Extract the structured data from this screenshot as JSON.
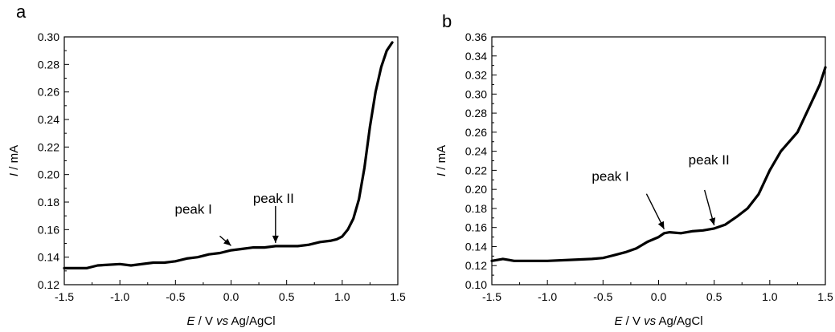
{
  "chart_data": [
    {
      "type": "line",
      "panel_label": "a",
      "xlabel_prefix": "E",
      "xlabel_mid": " / V ",
      "xlabel_vs": "vs",
      "xlabel_suffix": " Ag/AgCl",
      "ylabel_prefix": "I",
      "ylabel_suffix": " / mA",
      "xlim": [
        -1.5,
        1.5
      ],
      "ylim": [
        0.12,
        0.3
      ],
      "xticks": [
        "-1.5",
        "-1.0",
        "-0.5",
        "0.0",
        "0.5",
        "1.0",
        "1.5"
      ],
      "yticks": [
        "0.12",
        "0.14",
        "0.16",
        "0.18",
        "0.20",
        "0.22",
        "0.24",
        "0.26",
        "0.28",
        "0.30"
      ],
      "series": [
        {
          "x": [
            -1.5,
            -1.3,
            -1.2,
            -1.0,
            -0.9,
            -0.7,
            -0.6,
            -0.5,
            -0.4,
            -0.3,
            -0.2,
            -0.1,
            0.0,
            0.1,
            0.2,
            0.3,
            0.4,
            0.5,
            0.6,
            0.7,
            0.8,
            0.9,
            0.95,
            1.0,
            1.05,
            1.1,
            1.15,
            1.2,
            1.25,
            1.3,
            1.35,
            1.4,
            1.45
          ],
          "y": [
            0.132,
            0.132,
            0.134,
            0.135,
            0.134,
            0.136,
            0.136,
            0.137,
            0.139,
            0.14,
            0.142,
            0.143,
            0.145,
            0.146,
            0.147,
            0.147,
            0.148,
            0.148,
            0.148,
            0.149,
            0.151,
            0.152,
            0.153,
            0.155,
            0.16,
            0.168,
            0.182,
            0.205,
            0.235,
            0.26,
            0.278,
            0.29,
            0.296
          ]
        }
      ],
      "annotations": [
        {
          "text": "peak I",
          "x": 0.0,
          "y": 0.146
        },
        {
          "text": "peak II",
          "x": 0.4,
          "y": 0.148
        }
      ]
    },
    {
      "type": "line",
      "panel_label": "b",
      "xlabel_prefix": "E",
      "xlabel_mid": " / V ",
      "xlabel_vs": "vs",
      "xlabel_suffix": " Ag/AgCl",
      "ylabel_prefix": "I",
      "ylabel_suffix": " / mA",
      "xlim": [
        -1.5,
        1.5
      ],
      "ylim": [
        0.1,
        0.36
      ],
      "xticks": [
        "-1.5",
        "-1.0",
        "-0.5",
        "0.0",
        "0.5",
        "1.0",
        "1.5"
      ],
      "yticks": [
        "0.10",
        "0.12",
        "0.14",
        "0.16",
        "0.18",
        "0.20",
        "0.22",
        "0.24",
        "0.26",
        "0.28",
        "0.30",
        "0.32",
        "0.34",
        "0.36"
      ],
      "series": [
        {
          "x": [
            -1.5,
            -1.4,
            -1.3,
            -1.2,
            -1.0,
            -0.8,
            -0.6,
            -0.5,
            -0.4,
            -0.3,
            -0.2,
            -0.1,
            0.0,
            0.05,
            0.1,
            0.2,
            0.3,
            0.4,
            0.5,
            0.6,
            0.7,
            0.8,
            0.9,
            1.0,
            1.1,
            1.25,
            1.35,
            1.45,
            1.5
          ],
          "y": [
            0.125,
            0.127,
            0.125,
            0.125,
            0.125,
            0.126,
            0.127,
            0.128,
            0.131,
            0.134,
            0.138,
            0.145,
            0.15,
            0.154,
            0.155,
            0.154,
            0.156,
            0.157,
            0.159,
            0.163,
            0.171,
            0.18,
            0.195,
            0.22,
            0.24,
            0.26,
            0.285,
            0.31,
            0.328
          ]
        }
      ],
      "annotations": [
        {
          "text": "peak I",
          "x": 0.05,
          "y": 0.155
        },
        {
          "text": "peak II",
          "x": 0.5,
          "y": 0.159
        }
      ]
    }
  ]
}
